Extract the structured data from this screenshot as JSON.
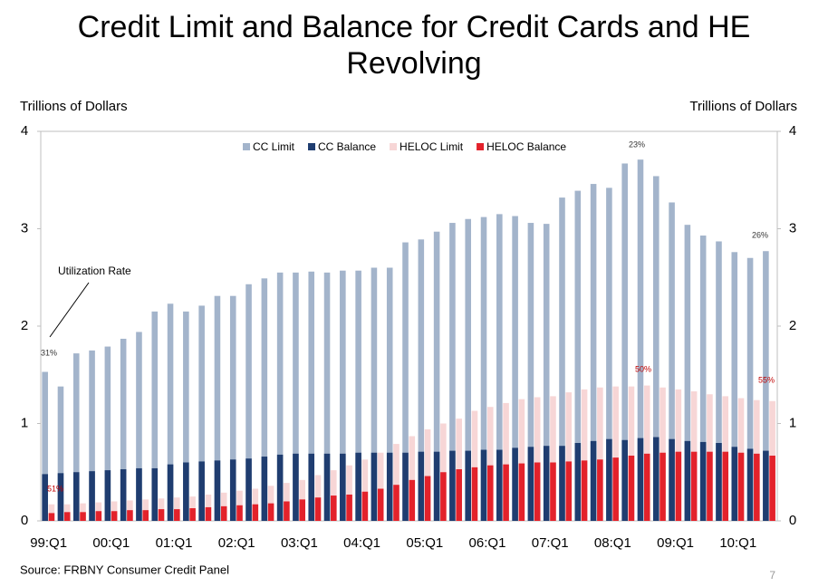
{
  "chart_data": {
    "type": "bar",
    "title": "Credit Limit and Balance for Credit Cards and HE Revolving",
    "y_label": "Trillions of Dollars",
    "y2_label": "Trillions of Dollars",
    "categories": [
      "99:Q1",
      null,
      null,
      null,
      "00:Q1",
      null,
      null,
      null,
      "01:Q1",
      null,
      null,
      null,
      "02:Q1",
      null,
      null,
      null,
      "03:Q1",
      null,
      null,
      null,
      "04:Q1",
      null,
      null,
      null,
      "05:Q1",
      null,
      null,
      null,
      "06:Q1",
      null,
      null,
      null,
      "07:Q1",
      null,
      null,
      null,
      "08:Q1",
      null,
      null,
      null,
      "09:Q1",
      null,
      null,
      null,
      "10:Q1",
      null,
      null
    ],
    "series": [
      {
        "name": "CC Limit",
        "color": "#a3b4cb",
        "values": [
          1.53,
          1.38,
          1.72,
          1.75,
          1.79,
          1.87,
          1.94,
          2.15,
          2.23,
          2.15,
          2.21,
          2.31,
          2.31,
          2.43,
          2.49,
          2.55,
          2.55,
          2.56,
          2.55,
          2.57,
          2.57,
          2.6,
          2.6,
          2.86,
          2.89,
          2.97,
          3.06,
          3.1,
          3.12,
          3.15,
          3.13,
          3.06,
          3.05,
          3.32,
          3.39,
          3.46,
          3.42,
          3.67,
          3.71,
          3.54,
          3.27,
          3.04,
          2.93,
          2.87,
          2.76,
          2.7,
          2.77
        ]
      },
      {
        "name": "CC Balance",
        "color": "#1f3d70",
        "values": [
          0.48,
          0.49,
          0.5,
          0.51,
          0.52,
          0.53,
          0.54,
          0.54,
          0.58,
          0.6,
          0.61,
          0.62,
          0.63,
          0.64,
          0.66,
          0.68,
          0.69,
          0.69,
          0.69,
          0.69,
          0.7,
          0.7,
          0.7,
          0.7,
          0.71,
          0.71,
          0.72,
          0.72,
          0.73,
          0.73,
          0.75,
          0.76,
          0.77,
          0.77,
          0.8,
          0.82,
          0.84,
          0.83,
          0.85,
          0.86,
          0.84,
          0.82,
          0.81,
          0.8,
          0.76,
          0.74,
          0.72
        ]
      },
      {
        "name": "HELOC Limit",
        "color": "#f7d6d6",
        "values": [
          0.17,
          0.17,
          0.18,
          0.19,
          0.2,
          0.21,
          0.22,
          0.23,
          0.24,
          0.25,
          0.27,
          0.29,
          0.31,
          0.33,
          0.36,
          0.39,
          0.42,
          0.47,
          0.52,
          0.57,
          0.63,
          0.7,
          0.79,
          0.87,
          0.94,
          1.0,
          1.05,
          1.13,
          1.17,
          1.21,
          1.25,
          1.27,
          1.28,
          1.32,
          1.35,
          1.37,
          1.38,
          1.38,
          1.39,
          1.37,
          1.35,
          1.33,
          1.3,
          1.28,
          1.26,
          1.24,
          1.23
        ]
      },
      {
        "name": "HELOC Balance",
        "color": "#e3222b",
        "values": [
          0.08,
          0.09,
          0.09,
          0.1,
          0.1,
          0.11,
          0.11,
          0.12,
          0.12,
          0.13,
          0.14,
          0.15,
          0.16,
          0.17,
          0.18,
          0.2,
          0.22,
          0.24,
          0.26,
          0.27,
          0.3,
          0.33,
          0.37,
          0.42,
          0.46,
          0.5,
          0.53,
          0.55,
          0.57,
          0.58,
          0.59,
          0.6,
          0.6,
          0.61,
          0.62,
          0.63,
          0.65,
          0.67,
          0.69,
          0.7,
          0.71,
          0.71,
          0.71,
          0.71,
          0.7,
          0.69,
          0.67
        ]
      }
    ],
    "ylim": [
      0,
      4
    ],
    "yticks": [
      0,
      1,
      2,
      3,
      4
    ],
    "y2lim": [
      0,
      4
    ],
    "y2ticks": [
      0,
      1,
      2,
      3,
      4
    ],
    "legend": "top",
    "annotations": [
      "Utilization Rate",
      "31%",
      "51%",
      "23%",
      "50%",
      "26%",
      "55%"
    ],
    "source": "Source: FRBNY Consumer Credit Panel",
    "page_number": "7"
  }
}
